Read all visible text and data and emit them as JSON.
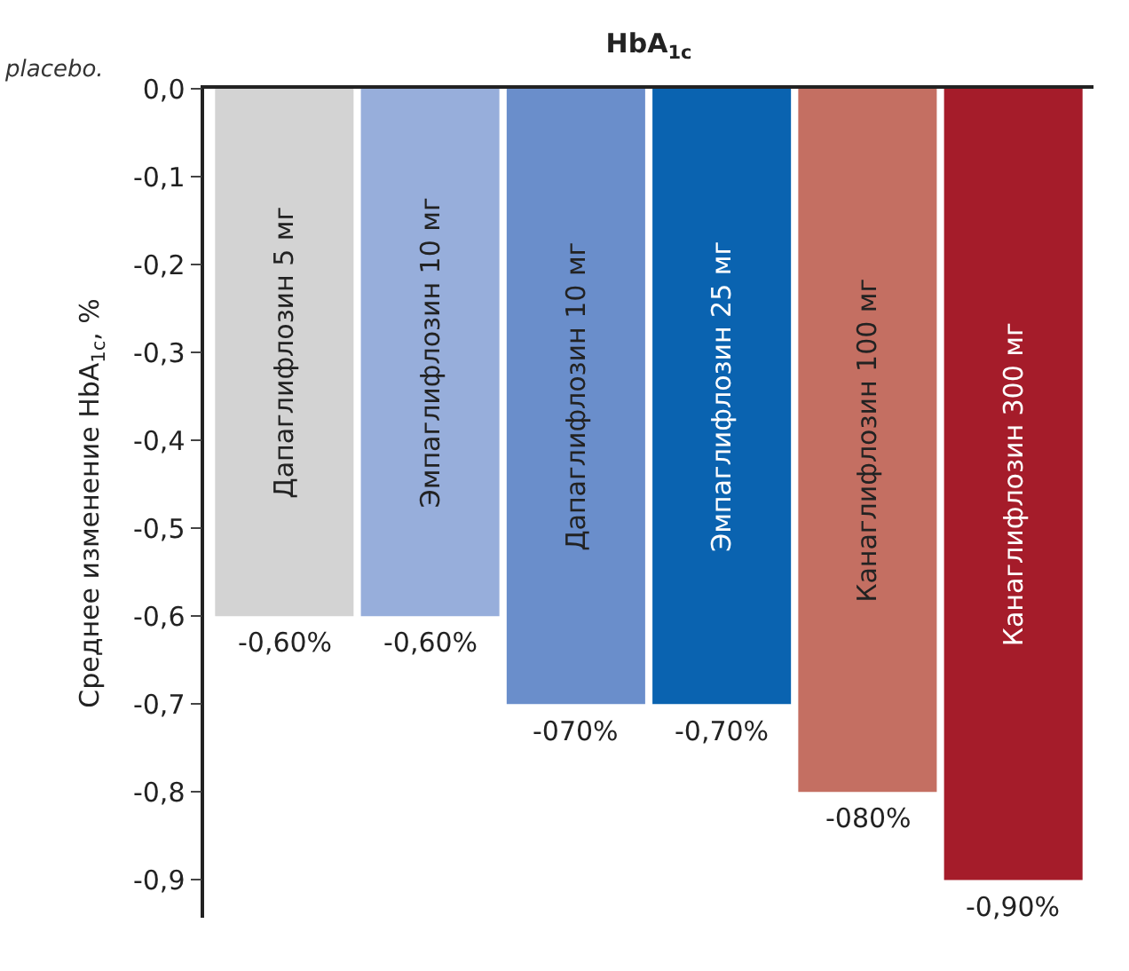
{
  "chart_data": {
    "type": "bar",
    "title": "HbA$_{1c}$",
    "ylabel": "Среднее изменение HbA$_{1c}$, %",
    "annotations": [
      "placebo."
    ],
    "categories": [
      "Дапаглифлозин 5 мг",
      "Эмпаглифлозин 10 мг",
      "Дапаглифлозин 10 мг",
      "Эмпаглифлозин 25 мг",
      "Канаглифлозин 100 мг",
      "Канаглифлозин 300 мг"
    ],
    "values": [
      -0.6,
      -0.6,
      -0.7,
      -0.7,
      -0.8,
      -0.9
    ],
    "colors": [
      "#d3d3d3",
      "#97aedb",
      "#6a8ecb",
      "#0a63b0",
      "#c46f62",
      "#a51c2a"
    ],
    "value_labels": [
      "-0,60%",
      "-0,60%",
      "-070%",
      "-0,70%",
      "-080%",
      "-0,90%"
    ],
    "ylim": [
      -0.943,
      0
    ],
    "yticks": [
      {
        "value": 0,
        "label": "0,0"
      },
      {
        "value": -0.1,
        "label": "-0,1"
      },
      {
        "value": -0.2,
        "label": "-0,2"
      },
      {
        "value": -0.3,
        "label": "-0,3"
      },
      {
        "value": -0.4,
        "label": "-0,4"
      },
      {
        "value": -0.5,
        "label": "-0,5"
      },
      {
        "value": -0.6,
        "label": "-0,6"
      },
      {
        "value": -0.7,
        "label": "-0,7"
      },
      {
        "value": -0.8,
        "label": "-0,8"
      },
      {
        "value": -0.9,
        "label": "-0,9"
      }
    ],
    "legend": false
  }
}
